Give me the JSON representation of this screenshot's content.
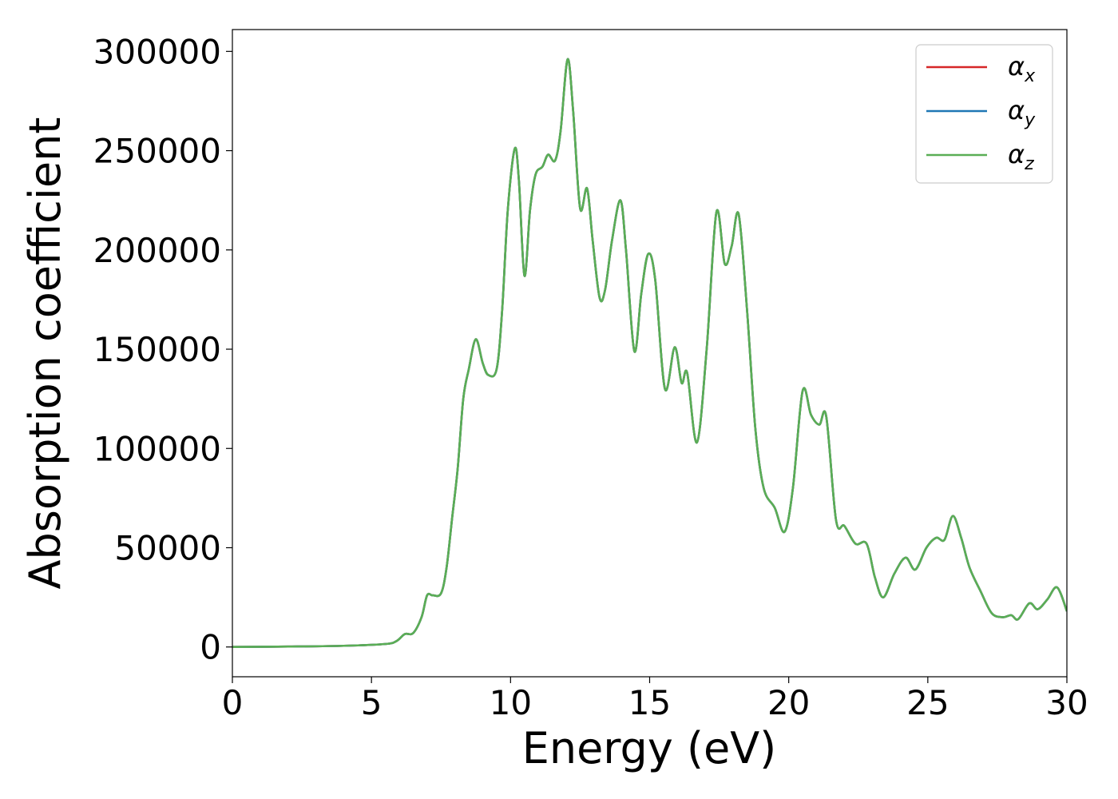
{
  "chart_data": {
    "type": "line",
    "title": "",
    "xlabel": "Energy (eV)",
    "ylabel": "Absorption coefficient",
    "xlim": [
      0,
      30
    ],
    "ylim": [
      -15000,
      311000
    ],
    "xticks": [
      0,
      5,
      10,
      15,
      20,
      25,
      30
    ],
    "yticks": [
      0,
      50000,
      100000,
      150000,
      200000,
      250000,
      300000
    ],
    "grid": false,
    "legend_position": "top-right",
    "series": [
      {
        "name": "α",
        "sub": "x",
        "color": "#d62728",
        "points": [
          [
            0,
            0
          ],
          [
            2,
            200
          ],
          [
            4,
            600
          ],
          [
            5.5,
            1500
          ],
          [
            5.9,
            3000
          ],
          [
            6.2,
            6500
          ],
          [
            6.5,
            7000
          ],
          [
            6.8,
            15000
          ],
          [
            7.0,
            26000
          ],
          [
            7.2,
            26000
          ],
          [
            7.5,
            27000
          ],
          [
            7.7,
            40000
          ],
          [
            7.9,
            65000
          ],
          [
            8.1,
            90000
          ],
          [
            8.3,
            125000
          ],
          [
            8.5,
            140000
          ],
          [
            8.75,
            155000
          ],
          [
            9.0,
            143000
          ],
          [
            9.2,
            137000
          ],
          [
            9.5,
            140000
          ],
          [
            9.7,
            170000
          ],
          [
            9.9,
            220000
          ],
          [
            10.15,
            251000
          ],
          [
            10.3,
            235000
          ],
          [
            10.5,
            187000
          ],
          [
            10.7,
            220000
          ],
          [
            10.9,
            238000
          ],
          [
            11.15,
            242000
          ],
          [
            11.35,
            248000
          ],
          [
            11.6,
            245000
          ],
          [
            11.8,
            260000
          ],
          [
            12.05,
            296000
          ],
          [
            12.25,
            270000
          ],
          [
            12.5,
            221000
          ],
          [
            12.75,
            231000
          ],
          [
            12.95,
            205000
          ],
          [
            13.2,
            176000
          ],
          [
            13.4,
            180000
          ],
          [
            13.65,
            205000
          ],
          [
            13.95,
            225000
          ],
          [
            14.15,
            200000
          ],
          [
            14.45,
            149000
          ],
          [
            14.7,
            178000
          ],
          [
            14.95,
            198000
          ],
          [
            15.2,
            185000
          ],
          [
            15.55,
            130000
          ],
          [
            15.9,
            151000
          ],
          [
            16.15,
            133000
          ],
          [
            16.35,
            138000
          ],
          [
            16.7,
            103000
          ],
          [
            17.05,
            150000
          ],
          [
            17.4,
            219000
          ],
          [
            17.7,
            193000
          ],
          [
            17.95,
            202000
          ],
          [
            18.2,
            218000
          ],
          [
            18.5,
            170000
          ],
          [
            18.8,
            110000
          ],
          [
            19.1,
            80000
          ],
          [
            19.5,
            70000
          ],
          [
            19.85,
            58000
          ],
          [
            20.15,
            80000
          ],
          [
            20.5,
            129000
          ],
          [
            20.8,
            117000
          ],
          [
            21.1,
            112000
          ],
          [
            21.35,
            116000
          ],
          [
            21.7,
            64000
          ],
          [
            22.0,
            61000
          ],
          [
            22.4,
            52000
          ],
          [
            22.8,
            52000
          ],
          [
            23.1,
            35000
          ],
          [
            23.4,
            25000
          ],
          [
            23.8,
            37000
          ],
          [
            24.2,
            45000
          ],
          [
            24.55,
            39000
          ],
          [
            24.95,
            50000
          ],
          [
            25.3,
            55000
          ],
          [
            25.6,
            54000
          ],
          [
            25.9,
            66000
          ],
          [
            26.2,
            55000
          ],
          [
            26.5,
            40000
          ],
          [
            26.9,
            28000
          ],
          [
            27.3,
            17000
          ],
          [
            27.7,
            15000
          ],
          [
            28.0,
            16000
          ],
          [
            28.25,
            14000
          ],
          [
            28.65,
            22000
          ],
          [
            28.95,
            19000
          ],
          [
            29.3,
            24000
          ],
          [
            29.65,
            30000
          ],
          [
            30.0,
            18000
          ]
        ]
      },
      {
        "name": "α",
        "sub": "y",
        "color": "#1f77b4",
        "points": [
          [
            0,
            0
          ],
          [
            2,
            200
          ],
          [
            4,
            600
          ],
          [
            5.5,
            1500
          ],
          [
            5.9,
            3000
          ],
          [
            6.2,
            6500
          ],
          [
            6.5,
            7000
          ],
          [
            6.8,
            15000
          ],
          [
            7.0,
            26000
          ],
          [
            7.2,
            26000
          ],
          [
            7.5,
            27000
          ],
          [
            7.7,
            40000
          ],
          [
            7.9,
            65000
          ],
          [
            8.1,
            90000
          ],
          [
            8.3,
            125000
          ],
          [
            8.5,
            140000
          ],
          [
            8.75,
            155000
          ],
          [
            9.0,
            143000
          ],
          [
            9.2,
            137000
          ],
          [
            9.5,
            140000
          ],
          [
            9.7,
            170000
          ],
          [
            9.9,
            220000
          ],
          [
            10.15,
            251000
          ],
          [
            10.3,
            235000
          ],
          [
            10.5,
            187000
          ],
          [
            10.7,
            220000
          ],
          [
            10.9,
            238000
          ],
          [
            11.15,
            242000
          ],
          [
            11.35,
            248000
          ],
          [
            11.6,
            245000
          ],
          [
            11.8,
            260000
          ],
          [
            12.05,
            296000
          ],
          [
            12.25,
            270000
          ],
          [
            12.5,
            221000
          ],
          [
            12.75,
            231000
          ],
          [
            12.95,
            205000
          ],
          [
            13.2,
            176000
          ],
          [
            13.4,
            180000
          ],
          [
            13.65,
            205000
          ],
          [
            13.95,
            225000
          ],
          [
            14.15,
            200000
          ],
          [
            14.45,
            149000
          ],
          [
            14.7,
            178000
          ],
          [
            14.95,
            198000
          ],
          [
            15.2,
            185000
          ],
          [
            15.55,
            130000
          ],
          [
            15.9,
            151000
          ],
          [
            16.15,
            133000
          ],
          [
            16.35,
            138000
          ],
          [
            16.7,
            103000
          ],
          [
            17.05,
            150000
          ],
          [
            17.4,
            219000
          ],
          [
            17.7,
            193000
          ],
          [
            17.95,
            202000
          ],
          [
            18.2,
            218000
          ],
          [
            18.5,
            170000
          ],
          [
            18.8,
            110000
          ],
          [
            19.1,
            80000
          ],
          [
            19.5,
            70000
          ],
          [
            19.85,
            58000
          ],
          [
            20.15,
            80000
          ],
          [
            20.5,
            129000
          ],
          [
            20.8,
            117000
          ],
          [
            21.1,
            112000
          ],
          [
            21.35,
            116000
          ],
          [
            21.7,
            64000
          ],
          [
            22.0,
            61000
          ],
          [
            22.4,
            52000
          ],
          [
            22.8,
            52000
          ],
          [
            23.1,
            35000
          ],
          [
            23.4,
            25000
          ],
          [
            23.8,
            37000
          ],
          [
            24.2,
            45000
          ],
          [
            24.55,
            39000
          ],
          [
            24.95,
            50000
          ],
          [
            25.3,
            55000
          ],
          [
            25.6,
            54000
          ],
          [
            25.9,
            66000
          ],
          [
            26.2,
            55000
          ],
          [
            26.5,
            40000
          ],
          [
            26.9,
            28000
          ],
          [
            27.3,
            17000
          ],
          [
            27.7,
            15000
          ],
          [
            28.0,
            16000
          ],
          [
            28.25,
            14000
          ],
          [
            28.65,
            22000
          ],
          [
            28.95,
            19000
          ],
          [
            29.3,
            24000
          ],
          [
            29.65,
            30000
          ],
          [
            30.0,
            18000
          ]
        ]
      },
      {
        "name": "α",
        "sub": "z",
        "color": "#5aae55",
        "points": [
          [
            0,
            0
          ],
          [
            2,
            200
          ],
          [
            4,
            600
          ],
          [
            5.5,
            1500
          ],
          [
            5.9,
            3000
          ],
          [
            6.2,
            6500
          ],
          [
            6.5,
            7000
          ],
          [
            6.8,
            15000
          ],
          [
            7.0,
            26000
          ],
          [
            7.2,
            26000
          ],
          [
            7.5,
            27000
          ],
          [
            7.7,
            40000
          ],
          [
            7.9,
            65000
          ],
          [
            8.1,
            90000
          ],
          [
            8.3,
            125000
          ],
          [
            8.5,
            140000
          ],
          [
            8.75,
            155000
          ],
          [
            9.0,
            143000
          ],
          [
            9.2,
            137000
          ],
          [
            9.5,
            140000
          ],
          [
            9.7,
            170000
          ],
          [
            9.9,
            220000
          ],
          [
            10.15,
            251000
          ],
          [
            10.3,
            235000
          ],
          [
            10.5,
            187000
          ],
          [
            10.7,
            220000
          ],
          [
            10.9,
            238000
          ],
          [
            11.15,
            242000
          ],
          [
            11.35,
            248000
          ],
          [
            11.6,
            245000
          ],
          [
            11.8,
            260000
          ],
          [
            12.05,
            296000
          ],
          [
            12.25,
            270000
          ],
          [
            12.5,
            221000
          ],
          [
            12.75,
            231000
          ],
          [
            12.95,
            205000
          ],
          [
            13.2,
            176000
          ],
          [
            13.4,
            180000
          ],
          [
            13.65,
            205000
          ],
          [
            13.95,
            225000
          ],
          [
            14.15,
            200000
          ],
          [
            14.45,
            149000
          ],
          [
            14.7,
            178000
          ],
          [
            14.95,
            198000
          ],
          [
            15.2,
            185000
          ],
          [
            15.55,
            130000
          ],
          [
            15.9,
            151000
          ],
          [
            16.15,
            133000
          ],
          [
            16.35,
            138000
          ],
          [
            16.7,
            103000
          ],
          [
            17.05,
            150000
          ],
          [
            17.4,
            219000
          ],
          [
            17.7,
            193000
          ],
          [
            17.95,
            202000
          ],
          [
            18.2,
            218000
          ],
          [
            18.5,
            170000
          ],
          [
            18.8,
            110000
          ],
          [
            19.1,
            80000
          ],
          [
            19.5,
            70000
          ],
          [
            19.85,
            58000
          ],
          [
            20.15,
            80000
          ],
          [
            20.5,
            129000
          ],
          [
            20.8,
            117000
          ],
          [
            21.1,
            112000
          ],
          [
            21.35,
            116000
          ],
          [
            21.7,
            64000
          ],
          [
            22.0,
            61000
          ],
          [
            22.4,
            52000
          ],
          [
            22.8,
            52000
          ],
          [
            23.1,
            35000
          ],
          [
            23.4,
            25000
          ],
          [
            23.8,
            37000
          ],
          [
            24.2,
            45000
          ],
          [
            24.55,
            39000
          ],
          [
            24.95,
            50000
          ],
          [
            25.3,
            55000
          ],
          [
            25.6,
            54000
          ],
          [
            25.9,
            66000
          ],
          [
            26.2,
            55000
          ],
          [
            26.5,
            40000
          ],
          [
            26.9,
            28000
          ],
          [
            27.3,
            17000
          ],
          [
            27.7,
            15000
          ],
          [
            28.0,
            16000
          ],
          [
            28.25,
            14000
          ],
          [
            28.65,
            22000
          ],
          [
            28.95,
            19000
          ],
          [
            29.3,
            24000
          ],
          [
            29.65,
            30000
          ],
          [
            30.0,
            18000
          ]
        ]
      }
    ]
  }
}
